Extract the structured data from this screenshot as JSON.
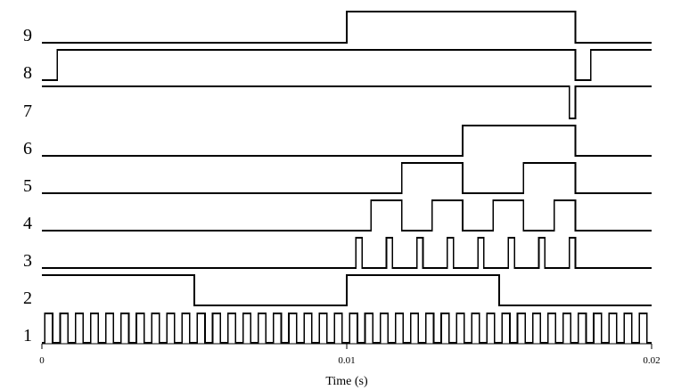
{
  "chart_data": {
    "type": "line",
    "title": "",
    "xlabel": "Time (s)",
    "ylabel": "",
    "xlim": [
      0,
      0.02
    ],
    "x_ticks": [
      0,
      0.01,
      0.02
    ],
    "x_tick_labels": [
      "0",
      "0.01",
      "0.02"
    ],
    "row_labels": [
      "1",
      "2",
      "3",
      "4",
      "5",
      "6",
      "7",
      "8",
      "9"
    ],
    "grid": false,
    "series": [
      {
        "label": "1",
        "initial": 0,
        "x_rising": [
          0.0001,
          0.0006,
          0.0011,
          0.0016,
          0.0021,
          0.0026,
          0.0031,
          0.0036,
          0.0041,
          0.0046,
          0.0051,
          0.0056,
          0.0061,
          0.0066,
          0.0071,
          0.0076,
          0.0081,
          0.0086,
          0.0091,
          0.0096,
          0.0101,
          0.0106,
          0.0111,
          0.0116,
          0.0121,
          0.0126,
          0.0131,
          0.0136,
          0.0141,
          0.0146,
          0.0151,
          0.0156,
          0.0161,
          0.0166,
          0.0171,
          0.0176,
          0.0181,
          0.0186,
          0.0191,
          0.0196
        ],
        "x_falling": [
          0.00035,
          0.00085,
          0.00135,
          0.00185,
          0.00235,
          0.00285,
          0.00335,
          0.00385,
          0.00435,
          0.00485,
          0.00535,
          0.00585,
          0.00635,
          0.00685,
          0.00735,
          0.00785,
          0.00835,
          0.00885,
          0.00935,
          0.00985,
          0.01035,
          0.01085,
          0.01135,
          0.01185,
          0.01235,
          0.01285,
          0.01335,
          0.01385,
          0.01435,
          0.01485,
          0.01535,
          0.01585,
          0.01635,
          0.01685,
          0.01735,
          0.01785,
          0.01835,
          0.01885,
          0.01935,
          0.01985
        ],
        "x_end": 0.02
      },
      {
        "label": "2",
        "initial": 1,
        "transitions": [
          0.005,
          0.01,
          0.015
        ],
        "x_end": 0.02
      },
      {
        "label": "3",
        "initial": 0,
        "transitions": [
          0.0103,
          0.0105,
          0.0113,
          0.0115,
          0.0123,
          0.0125,
          0.0133,
          0.0135,
          0.0143,
          0.0145,
          0.0153,
          0.0155,
          0.0163,
          0.0165,
          0.0173,
          0.0175
        ],
        "x_end": 0.02
      },
      {
        "label": "4",
        "initial": 0,
        "transitions": [
          0.0108,
          0.0118,
          0.0128,
          0.0138,
          0.0148,
          0.0158,
          0.0168,
          0.0175
        ],
        "x_end": 0.02
      },
      {
        "label": "5",
        "initial": 0,
        "transitions": [
          0.0118,
          0.0138,
          0.0158,
          0.0175
        ],
        "x_end": 0.02
      },
      {
        "label": "6",
        "initial": 0,
        "transitions": [
          0.0138,
          0.0175
        ],
        "x_end": 0.02
      },
      {
        "label": "7",
        "initial": 1,
        "transitions": [
          0.0173,
          0.0175
        ],
        "x_end": 0.02
      },
      {
        "label": "8",
        "initial": 0,
        "transitions": [
          0.0005,
          0.0175,
          0.018
        ],
        "x_end": 0.02
      },
      {
        "label": "9",
        "initial": 0,
        "transitions": [
          0.01,
          0.0175
        ],
        "x_end": 0.02
      }
    ]
  }
}
